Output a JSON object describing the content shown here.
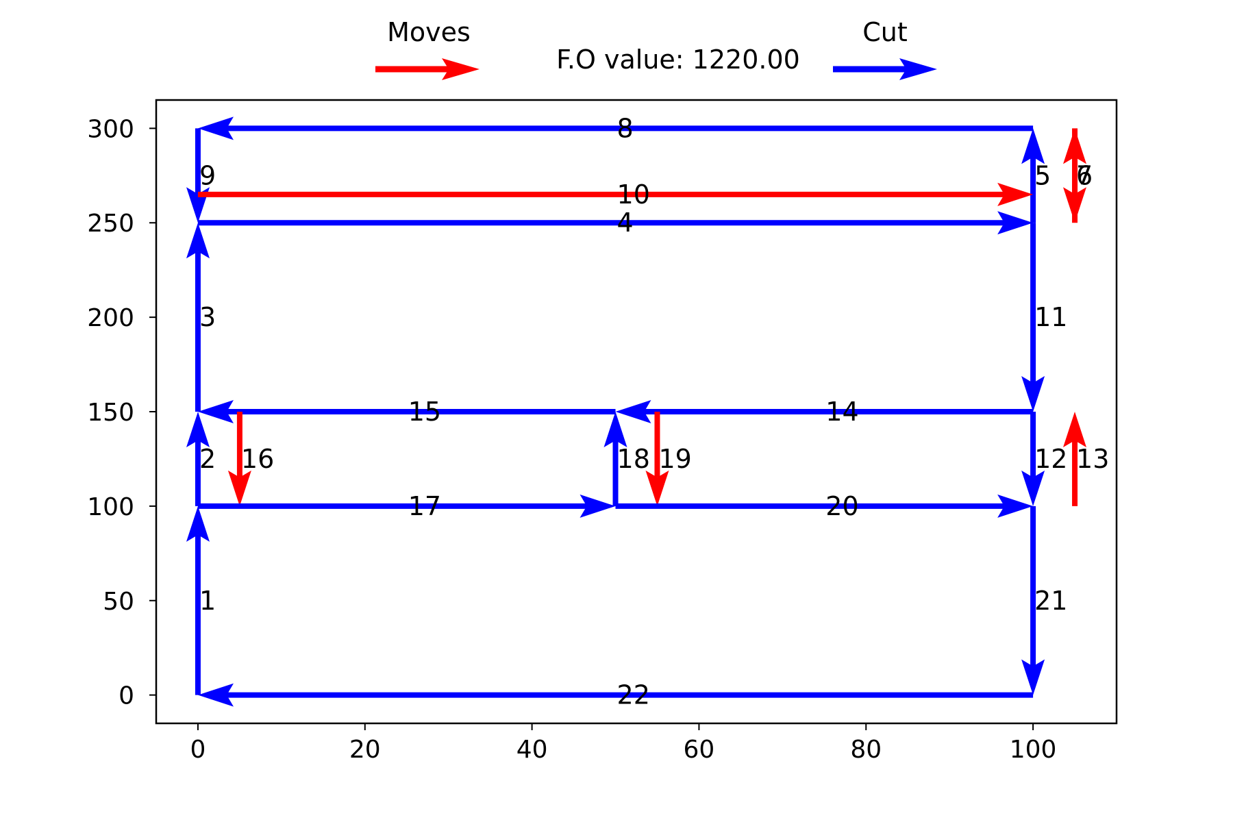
{
  "chart_data": {
    "type": "line",
    "title": "F.O value: 1220.00",
    "xlabel": "",
    "ylabel": "",
    "xlim": [
      -5,
      110
    ],
    "ylim": [
      -15,
      315
    ],
    "x_ticks": [
      0,
      20,
      40,
      60,
      80,
      100
    ],
    "y_ticks": [
      0,
      50,
      100,
      150,
      200,
      250,
      300
    ],
    "grid": false,
    "legend": [
      {
        "name": "Moves",
        "color": "#ff0000"
      },
      {
        "name": "Cut",
        "color": "#0000ff"
      }
    ],
    "segments": [
      {
        "id": "1",
        "type": "Cut",
        "from": [
          0,
          0
        ],
        "to": [
          0,
          100
        ]
      },
      {
        "id": "2",
        "type": "Cut",
        "from": [
          0,
          100
        ],
        "to": [
          0,
          150
        ]
      },
      {
        "id": "3",
        "type": "Cut",
        "from": [
          0,
          150
        ],
        "to": [
          0,
          250
        ]
      },
      {
        "id": "4",
        "type": "Cut",
        "from": [
          0,
          250
        ],
        "to": [
          100,
          250
        ]
      },
      {
        "id": "5",
        "type": "Cut",
        "from": [
          100,
          250
        ],
        "to": [
          100,
          300
        ]
      },
      {
        "id": "6",
        "type": "Moves",
        "from": [
          105,
          300
        ],
        "to": [
          105,
          250
        ]
      },
      {
        "id": "7",
        "type": "Moves",
        "from": [
          105,
          250
        ],
        "to": [
          105,
          300
        ]
      },
      {
        "id": "8",
        "type": "Cut",
        "from": [
          100,
          300
        ],
        "to": [
          0,
          300
        ]
      },
      {
        "id": "9",
        "type": "Cut",
        "from": [
          0,
          300
        ],
        "to": [
          0,
          250
        ]
      },
      {
        "id": "10",
        "type": "Moves",
        "from": [
          0,
          265
        ],
        "to": [
          100,
          265
        ]
      },
      {
        "id": "11",
        "type": "Cut",
        "from": [
          100,
          250
        ],
        "to": [
          100,
          150
        ]
      },
      {
        "id": "12",
        "type": "Cut",
        "from": [
          100,
          150
        ],
        "to": [
          100,
          100
        ]
      },
      {
        "id": "13",
        "type": "Moves",
        "from": [
          105,
          100
        ],
        "to": [
          105,
          150
        ]
      },
      {
        "id": "14",
        "type": "Cut",
        "from": [
          100,
          150
        ],
        "to": [
          50,
          150
        ]
      },
      {
        "id": "15",
        "type": "Cut",
        "from": [
          50,
          150
        ],
        "to": [
          0,
          150
        ]
      },
      {
        "id": "16",
        "type": "Moves",
        "from": [
          5,
          150
        ],
        "to": [
          5,
          100
        ]
      },
      {
        "id": "17",
        "type": "Cut",
        "from": [
          0,
          100
        ],
        "to": [
          50,
          100
        ]
      },
      {
        "id": "18",
        "type": "Cut",
        "from": [
          50,
          100
        ],
        "to": [
          50,
          150
        ]
      },
      {
        "id": "19",
        "type": "Moves",
        "from": [
          55,
          150
        ],
        "to": [
          55,
          100
        ]
      },
      {
        "id": "20",
        "type": "Cut",
        "from": [
          50,
          100
        ],
        "to": [
          100,
          100
        ]
      },
      {
        "id": "21",
        "type": "Cut",
        "from": [
          100,
          100
        ],
        "to": [
          100,
          0
        ]
      },
      {
        "id": "22",
        "type": "Cut",
        "from": [
          100,
          0
        ],
        "to": [
          0,
          0
        ]
      }
    ]
  }
}
